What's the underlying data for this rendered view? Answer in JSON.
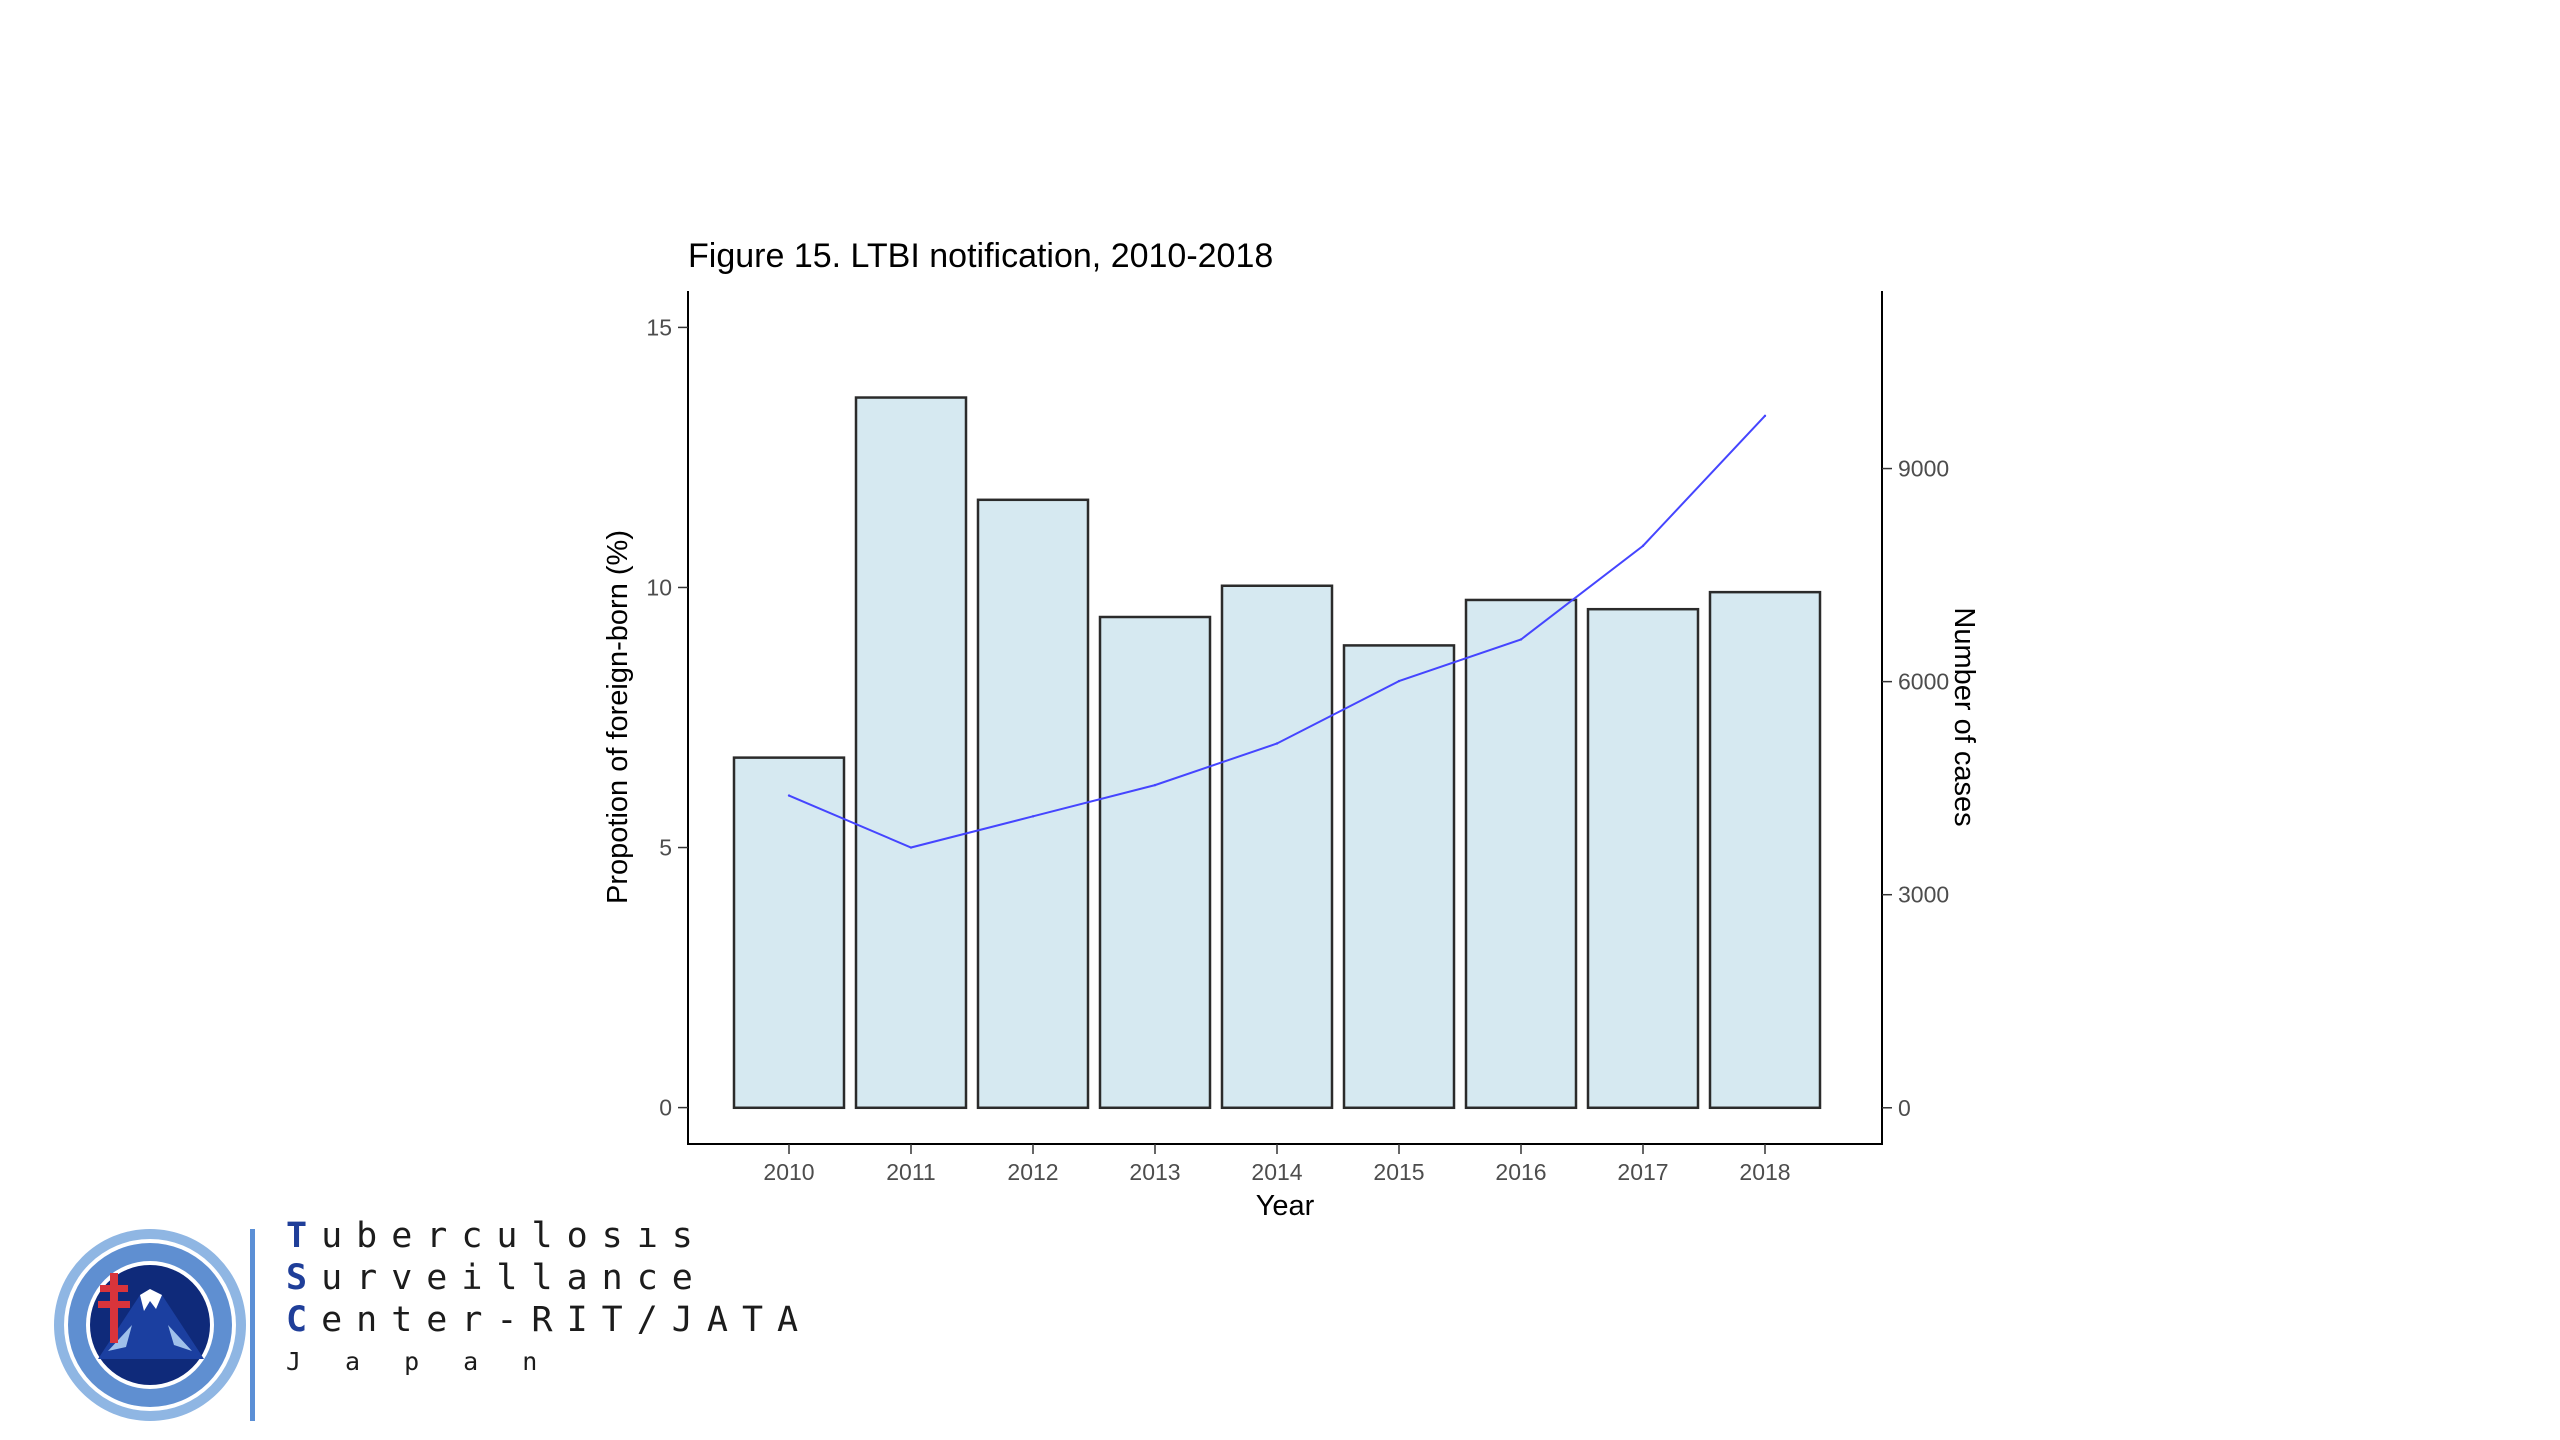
{
  "chart_data": {
    "type": "bar",
    "title": "Figure 15. LTBI notification, 2010-2018",
    "xlabel": "Year",
    "ylabel": "Propotion of foreign-born (%)",
    "y2label": "Number of cases",
    "categories": [
      "2010",
      "2011",
      "2012",
      "2013",
      "2014",
      "2015",
      "2016",
      "2017",
      "2018"
    ],
    "series": [
      {
        "name": "Number of cases",
        "type": "bar",
        "axis": "right",
        "values": [
          4930,
          10000,
          8560,
          6910,
          7350,
          6510,
          7150,
          7020,
          7260
        ]
      },
      {
        "name": "Propotion of foreign-born (%)",
        "type": "line",
        "axis": "left",
        "values": [
          6.0,
          5.0,
          5.6,
          6.2,
          7.0,
          8.2,
          9.0,
          10.8,
          13.3
        ]
      }
    ],
    "ylim": [
      -0.7,
      15.7
    ],
    "y2lim": [
      -510,
      11500
    ],
    "yticks": [
      0,
      5,
      10,
      15
    ],
    "y2ticks": [
      0,
      3000,
      6000,
      9000
    ],
    "colors": {
      "bar_fill": "#d6e9f1",
      "bar_stroke": "#2b2b2b",
      "line": "#4545ff",
      "axis": "#000000",
      "tick_text": "#4d4d4d"
    }
  },
  "logo": {
    "lines": [
      {
        "cap": "T",
        "rest": "uberculosıs"
      },
      {
        "cap": "S",
        "rest": "urveillance"
      },
      {
        "cap": "C",
        "rest": "enter-RIT/JATA"
      }
    ],
    "sub": "Japan",
    "colors": {
      "navy": "#1f3e99",
      "bar": "#5b8fd6",
      "cross": "#d8343b"
    }
  }
}
